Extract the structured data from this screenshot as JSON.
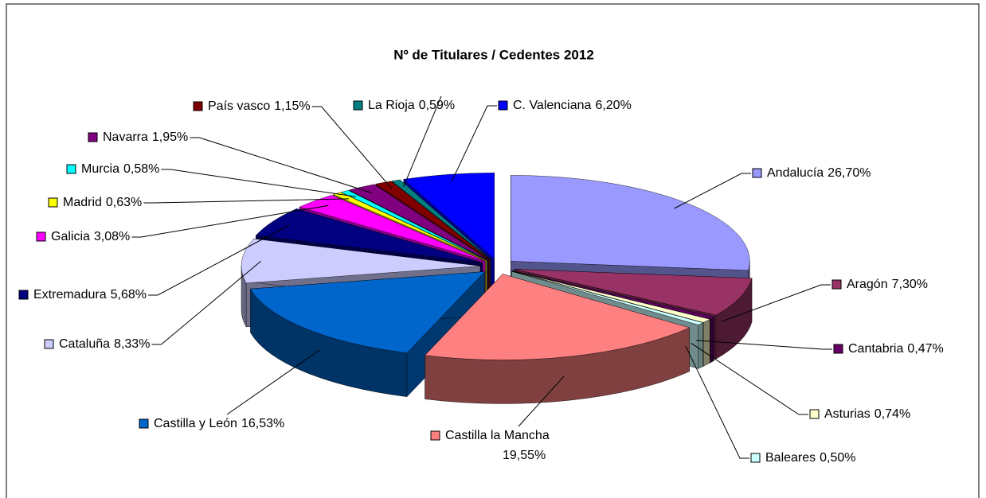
{
  "chart_data": {
    "type": "pie3d",
    "title": "Nº de Titulares / Cedentes 2012",
    "categories": [
      "Andalucía",
      "Aragón",
      "Cantabria",
      "Asturias",
      "Baleares",
      "Castilla la Mancha",
      "Castilla y León",
      "Cataluña",
      "Extremadura",
      "Galicia",
      "Madrid",
      "Murcia",
      "Navarra",
      "País vasco",
      "La Rioja",
      "C. Valenciana"
    ],
    "values": [
      26.7,
      7.3,
      0.47,
      0.74,
      0.5,
      19.55,
      16.53,
      8.33,
      5.68,
      3.08,
      0.63,
      0.58,
      1.95,
      1.15,
      0.59,
      6.2
    ],
    "value_labels": [
      "26,70%",
      "7,30%",
      "0,47%",
      "0,74%",
      "0,50%",
      "19,55%",
      "16,53%",
      "8,33%",
      "5,68%",
      "3,08%",
      "0,63%",
      "0,58%",
      "1,95%",
      "1,15%",
      "0,59%",
      "6,20%"
    ],
    "colors": [
      "#9999ff",
      "#993366",
      "#660066",
      "#ffffcc",
      "#ccffff",
      "#ff8080",
      "#0066cc",
      "#ccccff",
      "#000080",
      "#ff00ff",
      "#ffff00",
      "#00ffff",
      "#800080",
      "#800000",
      "#008080",
      "#0000ff"
    ],
    "legend": "labels"
  }
}
